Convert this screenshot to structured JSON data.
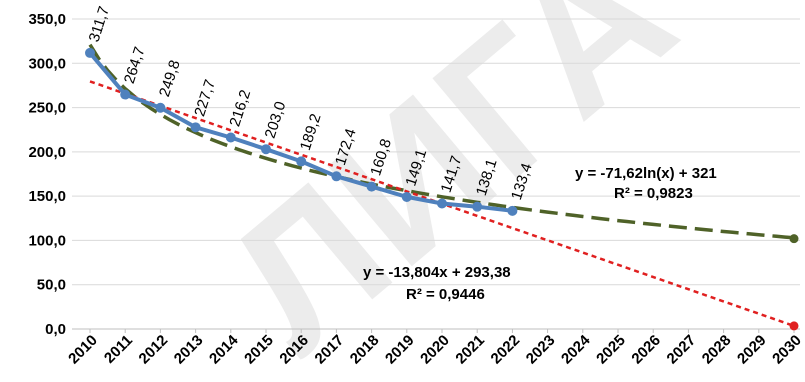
{
  "chart_data": {
    "type": "line",
    "x": [
      2010,
      2011,
      2012,
      2013,
      2014,
      2015,
      2016,
      2017,
      2018,
      2019,
      2020,
      2021,
      2022
    ],
    "x_ticks": [
      "2010",
      "2011",
      "2012",
      "2013",
      "2014",
      "2015",
      "2016",
      "2017",
      "2018",
      "2019",
      "2020",
      "2021",
      "2022",
      "2023",
      "2024",
      "2025",
      "2026",
      "2027",
      "2028",
      "2029",
      "2030"
    ],
    "y_ticks": [
      "0,0",
      "50,0",
      "100,0",
      "150,0",
      "200,0",
      "250,0",
      "300,0",
      "350,0"
    ],
    "ylim": [
      0,
      350
    ],
    "xlim": [
      2010,
      2030
    ],
    "grid": "horizontal",
    "series": [
      {
        "values": [
          311.7,
          264.7,
          249.8,
          227.7,
          216.2,
          203.0,
          189.2,
          172.4,
          160.8,
          149.1,
          141.7,
          138.1,
          133.4
        ],
        "labels": [
          "311,7",
          "264,7",
          "249,8",
          "227,7",
          "216,2",
          "203,0",
          "189,2",
          "172,4",
          "160,8",
          "149,1",
          "141,7",
          "138,1",
          "133,4"
        ],
        "color": "#4f81bd",
        "style": "solid-with-markers"
      }
    ],
    "trendlines": [
      {
        "kind": "logarithmic",
        "a": -71.62,
        "b": 321,
        "equation": "y = -71,62ln(x) + 321",
        "r2": "R² = 0,9823",
        "color": "#4f6228",
        "style": "long-dash",
        "end_value_2030": 102.0
      },
      {
        "kind": "linear",
        "a": -13.804,
        "b": 293.38,
        "equation": "y = -13,804x + 293,38",
        "r2": "R² = 0,9446",
        "color": "#e02020",
        "style": "short-dash",
        "end_value_2030": 3.5
      }
    ],
    "watermark": "ЛИГА"
  }
}
